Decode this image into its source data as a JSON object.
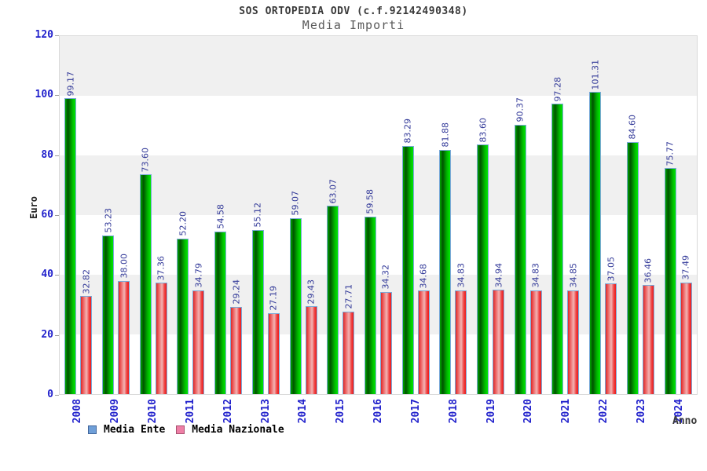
{
  "header": {
    "title": "SOS ORTOPEDIA ODV (c.f.92142490348)",
    "subtitle": "Media Importi"
  },
  "chart_data": {
    "type": "bar",
    "title": "SOS ORTOPEDIA ODV (c.f.92142490348)",
    "subtitle": "Media Importi",
    "xlabel": "Anno",
    "ylabel": "Euro",
    "ylim": [
      0,
      120
    ],
    "yticks": [
      0,
      20,
      40,
      60,
      80,
      100,
      120
    ],
    "grid": "alternating horizontal bands every 20 units",
    "legend_position": "bottom-left",
    "categories": [
      "2008",
      "2009",
      "2010",
      "2011",
      "2012",
      "2013",
      "2014",
      "2015",
      "2016",
      "2017",
      "2018",
      "2019",
      "2020",
      "2021",
      "2022",
      "2023",
      "2024"
    ],
    "series": [
      {
        "name": "Media Ente",
        "values": [
          99.17,
          53.23,
          73.6,
          52.2,
          54.58,
          55.12,
          59.07,
          63.07,
          59.58,
          83.29,
          81.88,
          83.6,
          90.37,
          97.28,
          101.31,
          84.6,
          75.77
        ],
        "labels": [
          "99.17",
          "53.23",
          "73.60",
          "52.20",
          "54.58",
          "55.12",
          "59.07",
          "63.07",
          "59.58",
          "83.29",
          "81.88",
          "83.60",
          "90.37",
          "97.28",
          "101.31",
          "84.60",
          "75.77"
        ]
      },
      {
        "name": "Media Nazionale",
        "values": [
          32.82,
          38.0,
          37.36,
          34.79,
          29.24,
          27.19,
          29.43,
          27.71,
          34.32,
          34.68,
          34.83,
          34.94,
          34.83,
          34.85,
          37.05,
          36.46,
          37.49
        ],
        "labels": [
          "32.82",
          "38.00",
          "37.36",
          "34.79",
          "29.24",
          "27.19",
          "29.43",
          "27.71",
          "34.32",
          "34.68",
          "34.83",
          "34.94",
          "34.83",
          "34.85",
          "37.05",
          "36.46",
          "37.49"
        ]
      }
    ]
  },
  "colors": {
    "bar_ente_gradient": [
      "#00a400",
      "#005400",
      "#00e800"
    ],
    "bar_nazionale_gradient": [
      "#dd2828",
      "#f2b4b4",
      "#ee1a1a"
    ],
    "bar_border": "#7aa9d8",
    "value_label": "#333a99",
    "axis_tick_label": "#2222cc",
    "band_gray": "#f0f0f0",
    "legend_swatch_ente": "#6f9fd8",
    "legend_swatch_nazionale": "#ee7fa6",
    "title_text": "#3a3a3a"
  }
}
